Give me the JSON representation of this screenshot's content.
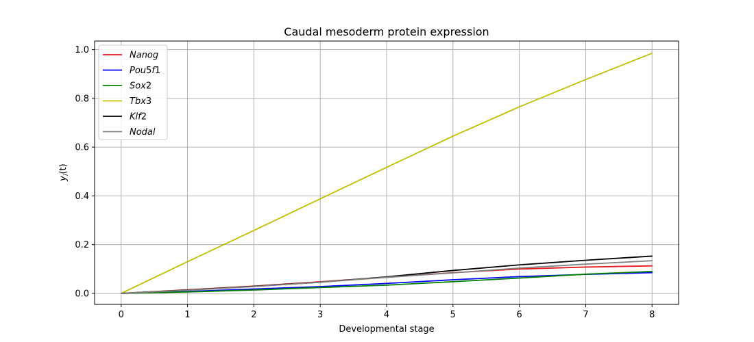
{
  "chart_data": {
    "type": "line",
    "title": "Caudal mesoderm protein expression",
    "xlabel": "Developmental stage",
    "ylabel": "y_i(t)",
    "ylabel_main": "y",
    "ylabel_sub": "i",
    "ylabel_rest": "(t)",
    "xlim": [
      -0.4,
      8.4
    ],
    "ylim": [
      -0.045,
      1.035
    ],
    "x_ticks": [
      "0",
      "1",
      "2",
      "3",
      "4",
      "5",
      "6",
      "7",
      "8"
    ],
    "y_ticks": [
      "0.0",
      "0.2",
      "0.4",
      "0.6",
      "0.8",
      "1.0"
    ],
    "grid": true,
    "legend_position": "top-left",
    "x": [
      0,
      1,
      2,
      3,
      4,
      5,
      6,
      7,
      8
    ],
    "series": [
      {
        "name": "Nanog",
        "color": "#e41a1c",
        "values": [
          0.0,
          0.015,
          0.03,
          0.048,
          0.066,
          0.085,
          0.1,
          0.108,
          0.113
        ]
      },
      {
        "name": "Pou5f1",
        "color": "#0000ff",
        "values": [
          0.0,
          0.008,
          0.018,
          0.028,
          0.041,
          0.056,
          0.069,
          0.078,
          0.085
        ]
      },
      {
        "name": "Sox2",
        "color": "#008000",
        "values": [
          0.0,
          0.006,
          0.014,
          0.024,
          0.034,
          0.048,
          0.063,
          0.079,
          0.09
        ]
      },
      {
        "name": "Tbx3",
        "color": "#bfbf00",
        "values": [
          0.0,
          0.13,
          0.258,
          0.388,
          0.517,
          0.645,
          0.765,
          0.877,
          0.985
        ]
      },
      {
        "name": "Klf2",
        "color": "#000000",
        "values": [
          0.0,
          0.014,
          0.029,
          0.046,
          0.068,
          0.094,
          0.117,
          0.136,
          0.153
        ]
      },
      {
        "name": "Nodal",
        "color": "#808080",
        "values": [
          0.0,
          0.013,
          0.028,
          0.046,
          0.066,
          0.084,
          0.104,
          0.12,
          0.134
        ]
      }
    ],
    "legend_labels": [
      {
        "main": "Nanog",
        "tail": ""
      },
      {
        "main": "Pou",
        "tail": "5f1",
        "tail_italic_part": "f",
        "pre_digit": "5",
        "post_digit": "1"
      },
      {
        "main": "Sox",
        "tail": "2"
      },
      {
        "main": "Tbx",
        "tail": "3"
      },
      {
        "main": "Klf",
        "tail": "2"
      },
      {
        "main": "Nodal",
        "tail": ""
      }
    ]
  }
}
